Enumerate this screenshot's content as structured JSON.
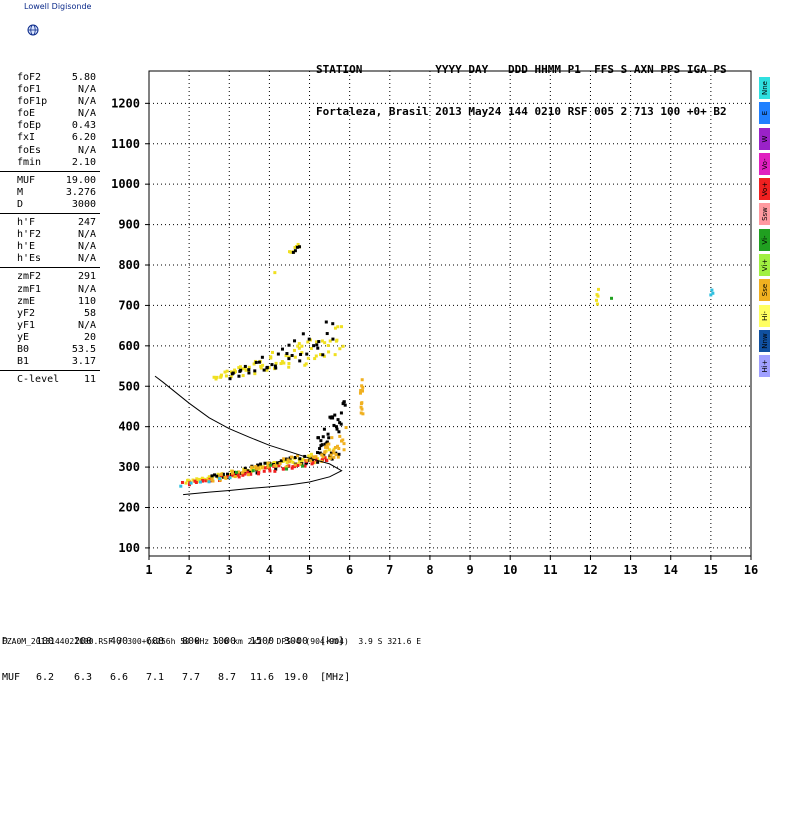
{
  "app_title": "Lowell Digisonde",
  "header": {
    "line1": "STATION           YYYY DAY   DDD HHMM P1  FFS S AXN PPS IGA PS",
    "line2": "Fortaleza, Brasil 2013 May24 144 0210 RSF 005 2 713 100 +0+ B2"
  },
  "parameter_groups": [
    [
      {
        "name": "foF2",
        "value": "5.80"
      },
      {
        "name": "foF1",
        "value": "N/A"
      },
      {
        "name": "foF1p",
        "value": "N/A"
      },
      {
        "name": "foE",
        "value": "N/A"
      },
      {
        "name": "foEp",
        "value": "0.43"
      },
      {
        "name": "fxI",
        "value": "6.20"
      },
      {
        "name": "foEs",
        "value": "N/A"
      },
      {
        "name": "fmin",
        "value": "2.10"
      }
    ],
    [
      {
        "name": "MUF",
        "value": "19.00"
      },
      {
        "name": "M",
        "value": "3.276"
      },
      {
        "name": "D",
        "value": "3000"
      }
    ],
    [
      {
        "name": "h'F",
        "value": "247"
      },
      {
        "name": "h'F2",
        "value": "N/A"
      },
      {
        "name": "h'E",
        "value": "N/A"
      },
      {
        "name": "h'Es",
        "value": "N/A"
      }
    ],
    [
      {
        "name": "zmF2",
        "value": "291"
      },
      {
        "name": "zmF1",
        "value": "N/A"
      },
      {
        "name": "zmE",
        "value": "110"
      },
      {
        "name": "yF2",
        "value": "58"
      },
      {
        "name": "yF1",
        "value": "N/A"
      },
      {
        "name": "yE",
        "value": "20"
      },
      {
        "name": "B0",
        "value": "53.5"
      },
      {
        "name": "B1",
        "value": "3.17"
      }
    ],
    [
      {
        "name": "C-level",
        "value": "11"
      }
    ]
  ],
  "legend": [
    {
      "label": "Nne",
      "color": "#30e0e0"
    },
    {
      "label": "E",
      "color": "#2080ff"
    },
    {
      "label": "W",
      "color": "#9a22c8"
    },
    {
      "label": "Vo-",
      "color": "#e020c0"
    },
    {
      "label": "Vo+",
      "color": "#f02020"
    },
    {
      "label": "Ssw",
      "color": "#ff9aa0"
    },
    {
      "label": "Vi-",
      "color": "#20a020"
    },
    {
      "label": "Vi+",
      "color": "#a0f040"
    },
    {
      "label": "Sse",
      "color": "#f0b020"
    },
    {
      "label": "Hi-",
      "color": "#ffff60"
    },
    {
      "label": "Nnw",
      "color": "#1050a0"
    },
    {
      "label": "Hi+",
      "color": "#a0a0ff"
    }
  ],
  "distance_table": {
    "d_label": "D",
    "d_values": [
      "100",
      "200",
      "400",
      "600",
      "800",
      "1000",
      "1500",
      "3000"
    ],
    "d_unit": "[km]",
    "muf_label": "MUF",
    "muf_values": [
      "6.2",
      "6.3",
      "6.6",
      "7.1",
      "7.7",
      "8.7",
      "11.6",
      "19.0"
    ],
    "muf_unit": "[MHz]"
  },
  "footer": "FZA0M_2013144021000.RSF / 300+(x256h 50 kHz 5.0 km 2x2 / DPS-4 (904-904)  3.9 S 321.6 E",
  "chart_data": {
    "type": "scatter",
    "xlim": [
      1,
      16
    ],
    "ylim": [
      80,
      1280
    ],
    "xticks": [
      1,
      2,
      3,
      4,
      5,
      6,
      7,
      8,
      9,
      10,
      11,
      12,
      13,
      14,
      15,
      16
    ],
    "yticks": [
      100,
      200,
      300,
      400,
      500,
      600,
      700,
      800,
      900,
      1000,
      1100,
      1200
    ],
    "grid": true,
    "point_colors": {
      "black": "#000000",
      "yellow": "#f0e020",
      "orange": "#f0b020",
      "red": "#f02020",
      "cyan": "#30c0e0",
      "green": "#20a020"
    },
    "bands": [
      {
        "color": "yellow",
        "x0": 1.9,
        "x1": 5.6,
        "hlo0": 258,
        "hlo1": 318,
        "hhi0": 266,
        "hhi1": 345,
        "n": 90
      },
      {
        "color": "black",
        "x0": 2.6,
        "x1": 5.7,
        "hlo0": 268,
        "hlo1": 318,
        "hhi0": 282,
        "hhi1": 350,
        "n": 55
      },
      {
        "color": "red",
        "x0": 1.9,
        "x1": 5.5,
        "hlo0": 252,
        "hlo1": 312,
        "hhi0": 262,
        "hhi1": 328,
        "n": 50
      },
      {
        "color": "orange",
        "x0": 2.5,
        "x1": 5.8,
        "hlo0": 262,
        "hlo1": 325,
        "hhi0": 275,
        "hhi1": 360,
        "n": 45
      },
      {
        "color": "black",
        "x0": 5.2,
        "x1": 5.9,
        "hlo0": 340,
        "hlo1": 400,
        "hhi0": 380,
        "hhi1": 480,
        "n": 30
      },
      {
        "color": "orange",
        "x0": 5.3,
        "x1": 5.9,
        "hlo0": 310,
        "hlo1": 340,
        "hhi0": 340,
        "hhi1": 420,
        "n": 18
      },
      {
        "color": "cyan",
        "x0": 1.8,
        "x1": 3.0,
        "hlo0": 252,
        "hlo1": 268,
        "hhi0": 258,
        "hhi1": 275,
        "n": 6
      },
      {
        "color": "green",
        "x0": 3.2,
        "x1": 4.8,
        "hlo0": 280,
        "hlo1": 300,
        "hhi0": 290,
        "hhi1": 320,
        "n": 5
      },
      {
        "color": "yellow",
        "x0": 2.6,
        "x1": 5.9,
        "hlo0": 512,
        "hlo1": 570,
        "hhi0": 525,
        "hhi1": 660,
        "n": 75
      },
      {
        "color": "black",
        "x0": 3.0,
        "x1": 5.6,
        "hlo0": 518,
        "hlo1": 580,
        "hhi0": 530,
        "hhi1": 680,
        "n": 40
      },
      {
        "color": "orange",
        "x0": 6.27,
        "x1": 6.33,
        "hlo0": 430,
        "hlo1": 430,
        "hhi0": 520,
        "hhi1": 520,
        "n": 14
      },
      {
        "color": "yellow",
        "x0": 4.5,
        "x1": 4.75,
        "hlo0": 825,
        "hlo1": 838,
        "hhi0": 835,
        "hhi1": 855,
        "n": 8
      },
      {
        "color": "black",
        "x0": 4.6,
        "x1": 4.75,
        "hlo0": 830,
        "hlo1": 840,
        "hhi0": 840,
        "hhi1": 855,
        "n": 4
      },
      {
        "color": "yellow",
        "x0": 12.15,
        "x1": 12.2,
        "hlo0": 700,
        "hlo1": 700,
        "hhi0": 745,
        "hhi1": 745,
        "n": 5
      },
      {
        "color": "green",
        "x0": 12.5,
        "x1": 12.55,
        "hlo0": 715,
        "hlo1": 715,
        "hhi0": 718,
        "hhi1": 718,
        "n": 1
      },
      {
        "color": "cyan",
        "x0": 15.0,
        "x1": 15.05,
        "hlo0": 725,
        "hlo1": 725,
        "hhi0": 745,
        "hhi1": 745,
        "n": 3
      },
      {
        "color": "yellow",
        "x0": 4.12,
        "x1": 4.15,
        "hlo0": 778,
        "hlo1": 778,
        "hhi0": 782,
        "hhi1": 782,
        "n": 1
      }
    ],
    "profile_curve": [
      [
        1.85,
        232
      ],
      [
        2.5,
        238
      ],
      [
        3.0,
        242
      ],
      [
        3.5,
        247
      ],
      [
        4.0,
        251
      ],
      [
        4.5,
        256
      ],
      [
        5.0,
        263
      ],
      [
        5.5,
        276
      ],
      [
        5.8,
        291
      ],
      [
        5.5,
        308
      ],
      [
        5.0,
        322
      ],
      [
        4.5,
        338
      ],
      [
        4.0,
        354
      ],
      [
        3.5,
        374
      ],
      [
        3.0,
        395
      ],
      [
        2.5,
        422
      ],
      [
        2.0,
        458
      ],
      [
        1.6,
        490
      ],
      [
        1.35,
        510
      ],
      [
        1.15,
        525
      ]
    ]
  }
}
